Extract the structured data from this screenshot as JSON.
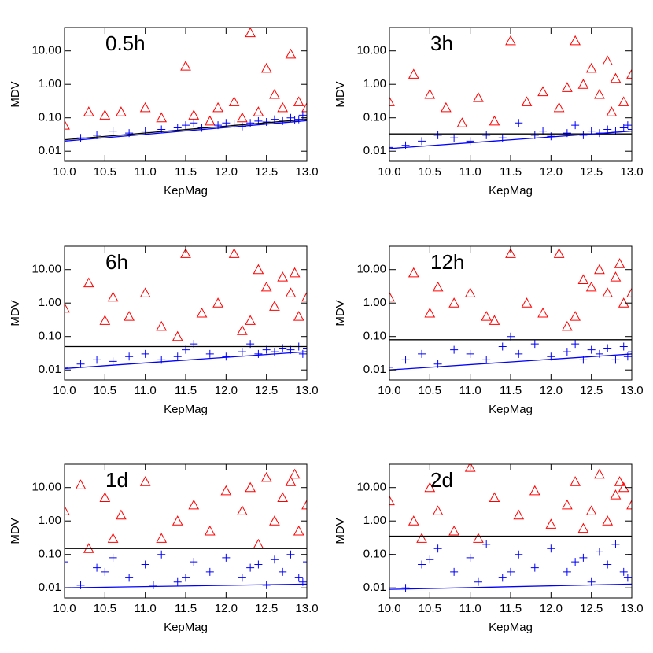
{
  "chart_data": [
    {
      "type": "scatter",
      "label": "0.5h",
      "xlabel": "KepMag",
      "ylabel": "MDV",
      "log_y": true,
      "xlim": [
        10,
        13
      ],
      "ylim": [
        0.005,
        50
      ],
      "xticks": [
        {
          "value": 10,
          "label": "10.0"
        },
        10.5,
        {
          "value": 11,
          "label": "11.0"
        },
        11.5,
        {
          "value": 12,
          "label": "12.0"
        },
        12.5,
        {
          "value": 13,
          "label": "13.0"
        }
      ],
      "yticks": [
        0.01,
        {
          "value": 0.1,
          "label": "0.10"
        },
        {
          "value": 1,
          "label": "1.00"
        },
        {
          "value": 10,
          "label": "10.00"
        }
      ],
      "series": [
        {
          "marker": "triangle",
          "color": "#ff0000",
          "x": [
            10.0,
            10.3,
            10.5,
            10.7,
            11.0,
            11.2,
            11.5,
            11.6,
            11.9,
            12.1,
            12.3,
            12.5,
            12.6,
            12.8,
            12.9,
            12.7,
            12.4,
            13.0,
            12.2,
            11.8
          ],
          "values": [
            0.06,
            0.15,
            0.12,
            0.15,
            0.2,
            0.1,
            3.5,
            0.12,
            0.2,
            0.3,
            35,
            3,
            0.5,
            8,
            0.3,
            0.2,
            0.15,
            0.2,
            0.1,
            0.08
          ]
        },
        {
          "marker": "plus",
          "color": "#0000ff",
          "x": [
            10.0,
            10.2,
            10.4,
            10.6,
            10.8,
            11.0,
            11.2,
            11.4,
            11.5,
            11.7,
            11.9,
            12.0,
            12.1,
            12.3,
            12.4,
            12.5,
            12.6,
            12.7,
            12.8,
            12.9,
            13.0,
            12.95,
            12.85,
            12.2,
            11.6
          ],
          "values": [
            0.022,
            0.025,
            0.03,
            0.04,
            0.035,
            0.04,
            0.045,
            0.05,
            0.06,
            0.05,
            0.06,
            0.07,
            0.065,
            0.07,
            0.08,
            0.075,
            0.09,
            0.08,
            0.1,
            0.09,
            0.1,
            0.12,
            0.085,
            0.055,
            0.07
          ]
        }
      ],
      "lines": [
        {
          "color": "#000000",
          "x": [
            10,
            13
          ],
          "values": [
            0.022,
            0.09
          ]
        },
        {
          "color": "#0000ff",
          "x": [
            10,
            13
          ],
          "values": [
            0.02,
            0.082
          ]
        }
      ]
    },
    {
      "type": "scatter",
      "label": "3h",
      "xlabel": "KepMag",
      "ylabel": "MDV",
      "log_y": true,
      "xlim": [
        10,
        13
      ],
      "ylim": [
        0.005,
        50
      ],
      "xticks": [
        {
          "value": 10,
          "label": "10.0"
        },
        10.5,
        {
          "value": 11,
          "label": "11.0"
        },
        11.5,
        {
          "value": 12,
          "label": "12.0"
        },
        12.5,
        {
          "value": 13,
          "label": "13.0"
        }
      ],
      "yticks": [
        0.01,
        {
          "value": 0.1,
          "label": "0.10"
        },
        {
          "value": 1,
          "label": "1.00"
        },
        {
          "value": 10,
          "label": "10.00"
        }
      ],
      "series": [
        {
          "marker": "triangle",
          "color": "#ff0000",
          "x": [
            10.0,
            10.3,
            10.5,
            10.7,
            10.9,
            11.1,
            11.3,
            11.5,
            11.7,
            11.9,
            12.1,
            12.3,
            12.4,
            12.5,
            12.6,
            12.7,
            12.8,
            12.9,
            13.0,
            12.75,
            12.2
          ],
          "values": [
            0.3,
            2,
            0.5,
            0.2,
            0.07,
            0.4,
            0.08,
            20,
            0.3,
            0.6,
            0.2,
            20,
            1,
            3,
            0.5,
            5,
            1.5,
            0.3,
            2,
            0.15,
            0.8
          ]
        },
        {
          "marker": "plus",
          "color": "#0000ff",
          "x": [
            10.0,
            10.2,
            10.4,
            10.6,
            10.8,
            11.0,
            11.2,
            11.4,
            11.6,
            11.8,
            12.0,
            12.2,
            12.4,
            12.5,
            12.6,
            12.7,
            12.8,
            12.9,
            13.0,
            12.3,
            11.9,
            12.95
          ],
          "values": [
            0.013,
            0.015,
            0.02,
            0.03,
            0.025,
            0.02,
            0.03,
            0.025,
            0.07,
            0.03,
            0.028,
            0.035,
            0.03,
            0.04,
            0.035,
            0.045,
            0.04,
            0.05,
            0.045,
            0.06,
            0.04,
            0.06
          ]
        }
      ],
      "lines": [
        {
          "color": "#000000",
          "x": [
            10,
            13
          ],
          "values": [
            0.033,
            0.033
          ]
        },
        {
          "color": "#0000ff",
          "x": [
            10,
            13
          ],
          "values": [
            0.012,
            0.04
          ]
        }
      ]
    },
    {
      "type": "scatter",
      "label": "6h",
      "xlabel": "KepMag",
      "ylabel": "MDV",
      "log_y": true,
      "xlim": [
        10,
        13
      ],
      "ylim": [
        0.005,
        50
      ],
      "xticks": [
        {
          "value": 10,
          "label": "10.0"
        },
        10.5,
        {
          "value": 11,
          "label": "11.0"
        },
        11.5,
        {
          "value": 12,
          "label": "12.0"
        },
        12.5,
        {
          "value": 13,
          "label": "13.0"
        }
      ],
      "yticks": [
        0.01,
        {
          "value": 0.1,
          "label": "0.10"
        },
        {
          "value": 1,
          "label": "1.00"
        },
        {
          "value": 10,
          "label": "10.00"
        }
      ],
      "series": [
        {
          "marker": "triangle",
          "color": "#ff0000",
          "x": [
            10.0,
            10.3,
            10.5,
            10.6,
            10.8,
            11.0,
            11.2,
            11.5,
            11.7,
            11.9,
            12.1,
            12.3,
            12.4,
            12.5,
            12.6,
            12.7,
            12.8,
            12.9,
            13.0,
            12.2,
            11.4,
            12.85
          ],
          "values": [
            0.7,
            4,
            0.3,
            1.5,
            0.4,
            2,
            0.2,
            30,
            0.5,
            1,
            30,
            0.3,
            10,
            3,
            0.8,
            6,
            2,
            0.4,
            1.5,
            0.15,
            0.1,
            8
          ]
        },
        {
          "marker": "plus",
          "color": "#0000ff",
          "x": [
            10.0,
            10.2,
            10.4,
            10.6,
            10.8,
            11.0,
            11.2,
            11.4,
            11.6,
            11.8,
            12.0,
            12.2,
            12.4,
            12.5,
            12.6,
            12.7,
            12.8,
            12.9,
            13.0,
            12.3,
            11.5,
            12.95
          ],
          "values": [
            0.012,
            0.015,
            0.02,
            0.018,
            0.025,
            0.03,
            0.02,
            0.025,
            0.06,
            0.03,
            0.025,
            0.035,
            0.03,
            0.04,
            0.035,
            0.045,
            0.04,
            0.05,
            0.045,
            0.06,
            0.04,
            0.03
          ]
        }
      ],
      "lines": [
        {
          "color": "#000000",
          "x": [
            10,
            13
          ],
          "values": [
            0.05,
            0.05
          ]
        },
        {
          "color": "#0000ff",
          "x": [
            10,
            13
          ],
          "values": [
            0.011,
            0.035
          ]
        }
      ]
    },
    {
      "type": "scatter",
      "label": "12h",
      "xlabel": "KepMag",
      "ylabel": "MDV",
      "log_y": true,
      "xlim": [
        10,
        13
      ],
      "ylim": [
        0.005,
        50
      ],
      "xticks": [
        {
          "value": 10,
          "label": "10.0"
        },
        10.5,
        {
          "value": 11,
          "label": "11.0"
        },
        11.5,
        {
          "value": 12,
          "label": "12.0"
        },
        12.5,
        {
          "value": 13,
          "label": "13.0"
        }
      ],
      "yticks": [
        0.01,
        {
          "value": 0.1,
          "label": "0.10"
        },
        {
          "value": 1,
          "label": "1.00"
        },
        {
          "value": 10,
          "label": "10.00"
        }
      ],
      "series": [
        {
          "marker": "triangle",
          "color": "#ff0000",
          "x": [
            10.0,
            10.3,
            10.5,
            10.6,
            10.8,
            11.0,
            11.3,
            11.5,
            11.7,
            11.9,
            12.1,
            12.3,
            12.4,
            12.5,
            12.6,
            12.7,
            12.8,
            12.9,
            13.0,
            12.2,
            11.2,
            12.85
          ],
          "values": [
            1.5,
            8,
            0.5,
            3,
            1,
            2,
            0.3,
            30,
            1,
            0.5,
            30,
            0.4,
            5,
            3,
            10,
            2,
            6,
            1,
            2,
            0.2,
            0.4,
            15
          ]
        },
        {
          "marker": "plus",
          "color": "#0000ff",
          "x": [
            10.0,
            10.2,
            10.4,
            10.6,
            10.8,
            11.0,
            11.2,
            11.4,
            11.6,
            11.8,
            12.0,
            12.2,
            12.4,
            12.5,
            12.6,
            12.7,
            12.8,
            12.9,
            13.0,
            12.3,
            11.5,
            12.95
          ],
          "values": [
            0.012,
            0.02,
            0.03,
            0.015,
            0.04,
            0.03,
            0.02,
            0.05,
            0.03,
            0.06,
            0.025,
            0.035,
            0.02,
            0.04,
            0.03,
            0.045,
            0.02,
            0.05,
            0.035,
            0.06,
            0.1,
            0.025
          ]
        }
      ],
      "lines": [
        {
          "color": "#000000",
          "x": [
            10,
            13
          ],
          "values": [
            0.08,
            0.08
          ]
        },
        {
          "color": "#0000ff",
          "x": [
            10,
            13
          ],
          "values": [
            0.01,
            0.03
          ]
        }
      ]
    },
    {
      "type": "scatter",
      "label": "1d",
      "xlabel": "KepMag",
      "ylabel": "MDV",
      "log_y": true,
      "xlim": [
        10,
        13
      ],
      "ylim": [
        0.005,
        50
      ],
      "xticks": [
        {
          "value": 10,
          "label": "10.0"
        },
        10.5,
        {
          "value": 11,
          "label": "11.0"
        },
        11.5,
        {
          "value": 12,
          "label": "12.0"
        },
        12.5,
        {
          "value": 13,
          "label": "13.0"
        }
      ],
      "yticks": [
        0.01,
        {
          "value": 0.1,
          "label": "0.10"
        },
        {
          "value": 1,
          "label": "1.00"
        },
        {
          "value": 10,
          "label": "10.00"
        }
      ],
      "series": [
        {
          "marker": "triangle",
          "color": "#ff0000",
          "x": [
            10.0,
            10.2,
            10.3,
            10.5,
            10.7,
            11.0,
            11.2,
            11.4,
            11.6,
            11.8,
            12.0,
            12.2,
            12.3,
            12.5,
            12.6,
            12.7,
            12.8,
            12.9,
            13.0,
            12.4,
            10.6,
            12.85
          ],
          "values": [
            2,
            12,
            0.15,
            5,
            1.5,
            15,
            0.3,
            1,
            3,
            0.5,
            8,
            2,
            10,
            20,
            1,
            5,
            15,
            0.5,
            3,
            0.2,
            0.3,
            25
          ]
        },
        {
          "marker": "plus",
          "color": "#0000ff",
          "x": [
            10.0,
            10.2,
            10.4,
            10.6,
            10.8,
            11.0,
            11.2,
            11.4,
            11.6,
            11.8,
            12.0,
            12.2,
            12.4,
            12.5,
            12.6,
            12.7,
            12.8,
            12.9,
            13.0,
            12.3,
            11.5,
            12.95,
            10.5,
            11.1
          ],
          "values": [
            0.06,
            0.012,
            0.04,
            0.08,
            0.02,
            0.05,
            0.1,
            0.015,
            0.06,
            0.03,
            0.08,
            0.02,
            0.05,
            0.012,
            0.07,
            0.03,
            0.1,
            0.02,
            0.06,
            0.04,
            0.02,
            0.015,
            0.03,
            0.012
          ]
        }
      ],
      "lines": [
        {
          "color": "#000000",
          "x": [
            10,
            13
          ],
          "values": [
            0.15,
            0.15
          ]
        },
        {
          "color": "#0000ff",
          "x": [
            10,
            13
          ],
          "values": [
            0.01,
            0.013
          ]
        }
      ]
    },
    {
      "type": "scatter",
      "label": "2d",
      "xlabel": "KepMag",
      "ylabel": "MDV",
      "log_y": true,
      "xlim": [
        10,
        13
      ],
      "ylim": [
        0.005,
        50
      ],
      "xticks": [
        {
          "value": 10,
          "label": "10.0"
        },
        10.5,
        {
          "value": 11,
          "label": "11.0"
        },
        11.5,
        {
          "value": 12,
          "label": "12.0"
        },
        12.5,
        {
          "value": 13,
          "label": "13.0"
        }
      ],
      "yticks": [
        0.01,
        {
          "value": 0.1,
          "label": "0.10"
        },
        {
          "value": 1,
          "label": "1.00"
        },
        {
          "value": 10,
          "label": "10.00"
        }
      ],
      "series": [
        {
          "marker": "triangle",
          "color": "#ff0000",
          "x": [
            10.0,
            10.3,
            10.5,
            10.6,
            10.8,
            11.0,
            11.1,
            11.3,
            11.6,
            11.8,
            12.0,
            12.2,
            12.3,
            12.5,
            12.6,
            12.7,
            12.8,
            12.9,
            13.0,
            12.4,
            10.4,
            12.85
          ],
          "values": [
            4,
            1,
            10,
            2,
            0.5,
            40,
            0.3,
            5,
            1.5,
            8,
            0.8,
            3,
            15,
            2,
            25,
            1,
            6,
            10,
            3,
            0.6,
            0.3,
            15
          ]
        },
        {
          "marker": "plus",
          "color": "#0000ff",
          "x": [
            10.0,
            10.2,
            10.4,
            10.6,
            10.8,
            11.0,
            11.2,
            11.4,
            11.6,
            11.8,
            12.0,
            12.2,
            12.4,
            12.5,
            12.6,
            12.7,
            12.8,
            12.9,
            13.0,
            12.3,
            11.5,
            12.95,
            10.5,
            11.1
          ],
          "values": [
            0.1,
            0.01,
            0.05,
            0.15,
            0.03,
            0.08,
            0.2,
            0.02,
            0.1,
            0.04,
            0.15,
            0.03,
            0.08,
            0.015,
            0.12,
            0.05,
            0.2,
            0.03,
            0.1,
            0.06,
            0.03,
            0.02,
            0.07,
            0.015
          ]
        }
      ],
      "lines": [
        {
          "color": "#000000",
          "x": [
            10,
            13
          ],
          "values": [
            0.35,
            0.35
          ]
        },
        {
          "color": "#0000ff",
          "x": [
            10,
            13
          ],
          "values": [
            0.009,
            0.013
          ]
        }
      ]
    }
  ]
}
